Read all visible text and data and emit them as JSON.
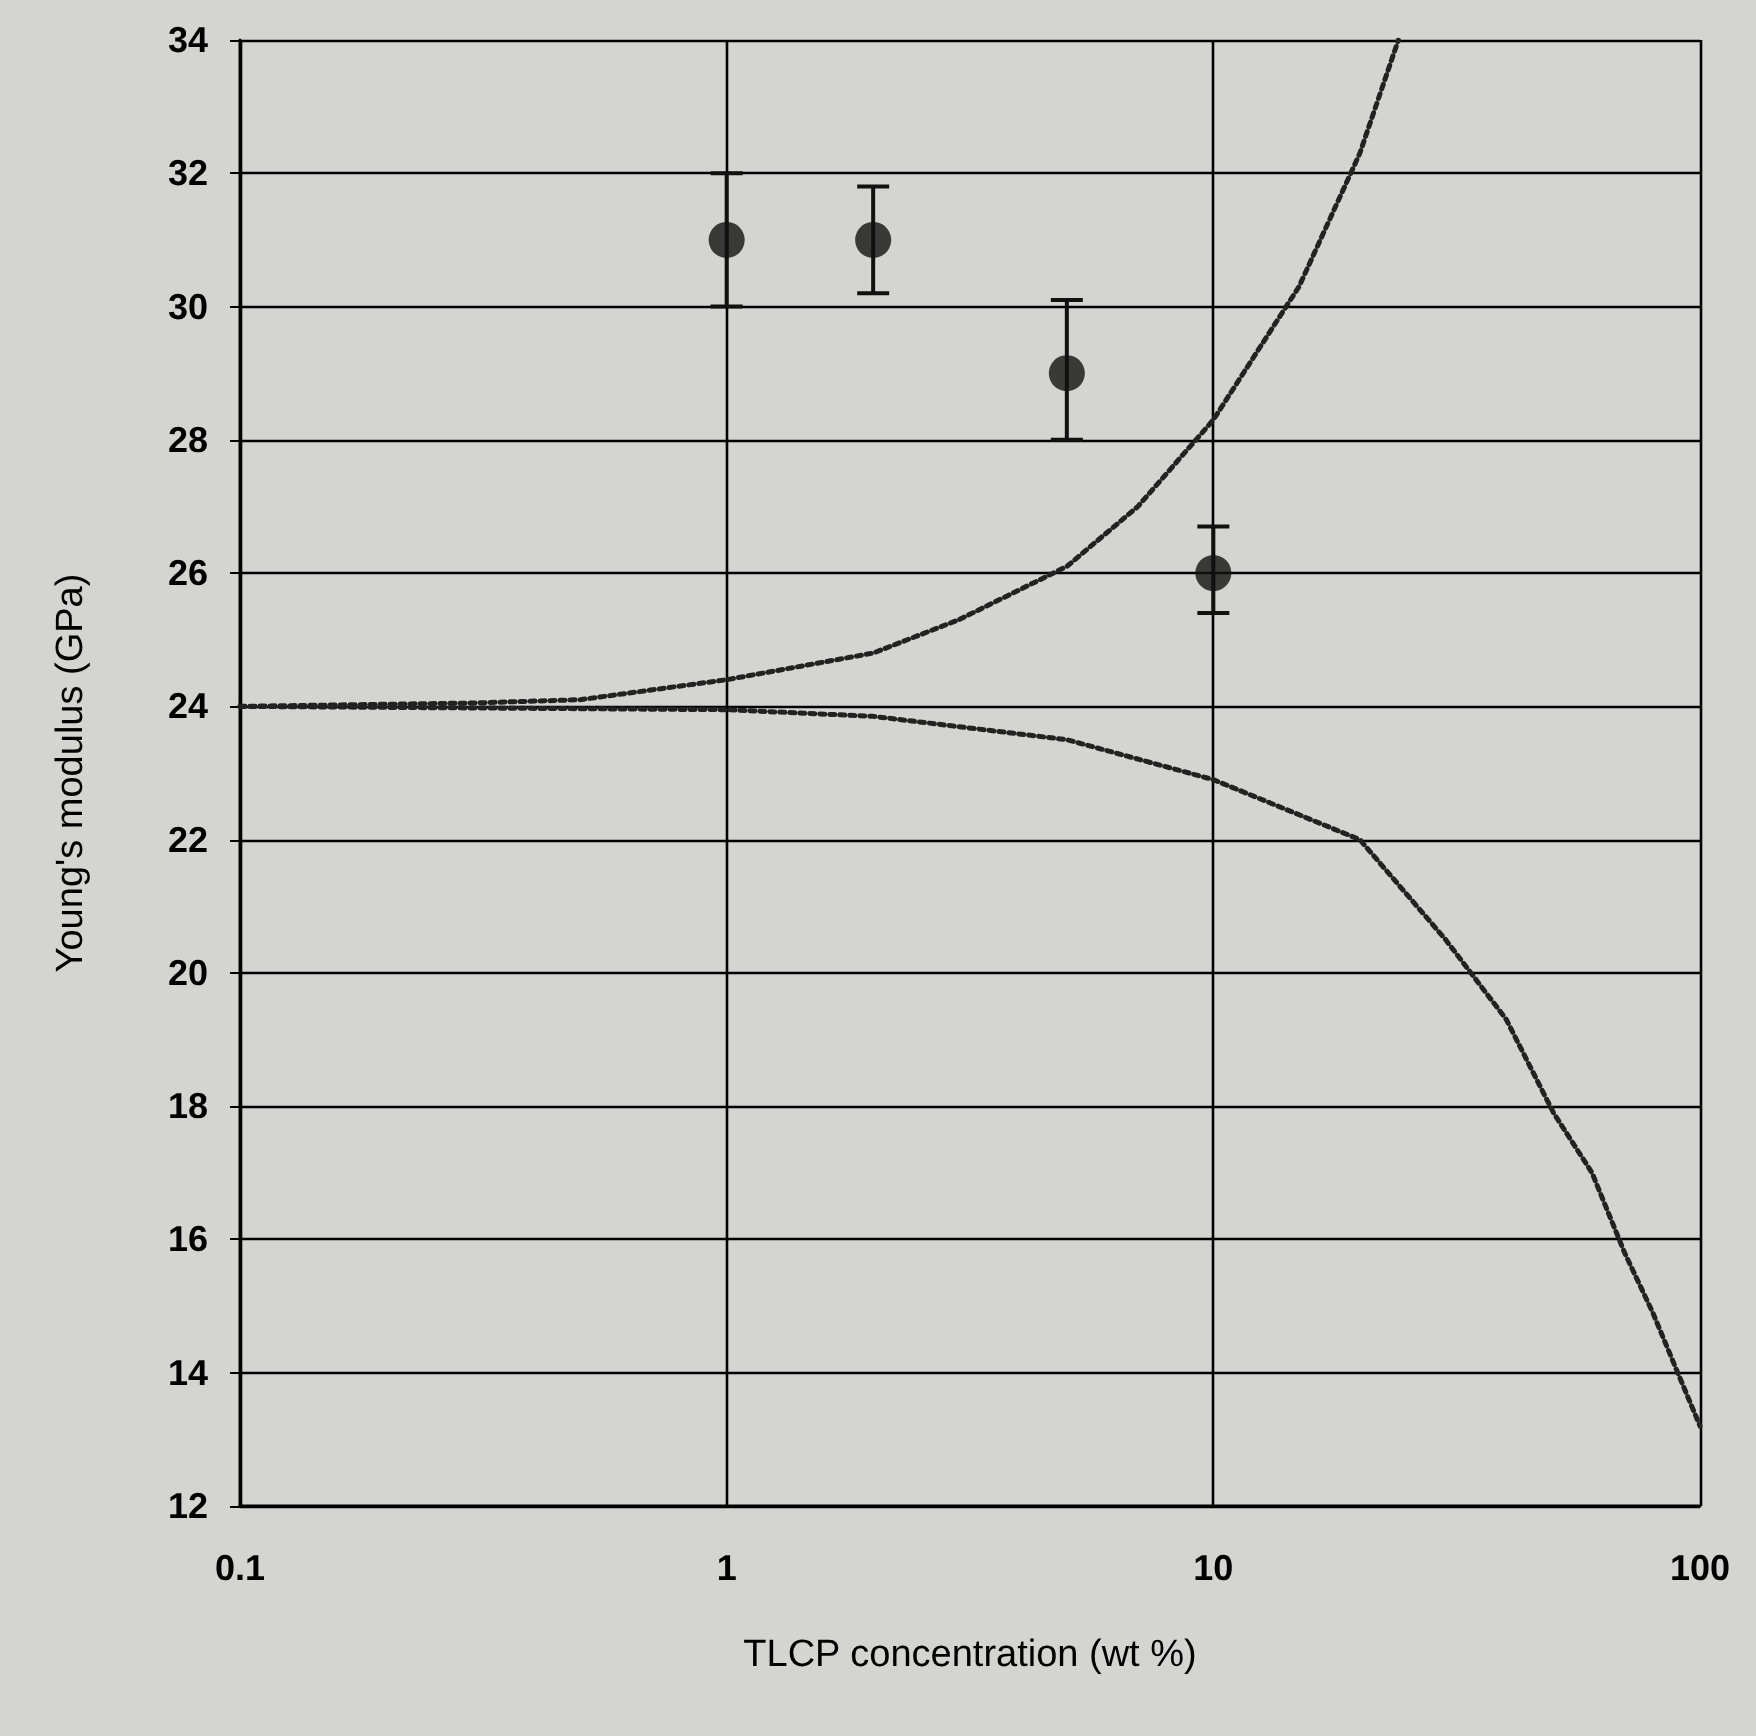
{
  "chart_data": {
    "type": "scatter",
    "xlabel": "TLCP concentration (wt %)",
    "ylabel": "Young's modulus (GPa)",
    "log": "x",
    "xlim": [
      0.1,
      100
    ],
    "xticks": [
      0.1,
      1,
      10,
      100
    ],
    "ylim": [
      12,
      34
    ],
    "yticks": [
      12,
      14,
      16,
      18,
      20,
      22,
      24,
      26,
      28,
      30,
      32,
      34
    ],
    "grid": true,
    "series": [
      {
        "color": "#111111",
        "marker": "circle",
        "x": [
          1,
          2,
          5,
          10
        ],
        "values": [
          31,
          31,
          29,
          26
        ],
        "errors": [
          [
            30.0,
            32.0
          ],
          [
            30.2,
            31.8
          ],
          [
            28.0,
            30.1
          ],
          [
            25.4,
            26.7
          ]
        ]
      },
      {
        "type": "line",
        "color": "#222222",
        "marker": "none",
        "line_style": "dotted",
        "x": [
          0.1,
          0.3,
          0.5,
          1,
          2,
          3,
          5,
          7,
          10,
          15,
          20,
          24
        ],
        "values": [
          24,
          24.05,
          24.1,
          24.4,
          24.8,
          25.3,
          26.1,
          27,
          28.3,
          30.3,
          32.3,
          34
        ]
      },
      {
        "type": "line",
        "color": "#222222",
        "marker": "none",
        "line_style": "dotted",
        "x": [
          0.1,
          1,
          2,
          5,
          10,
          20,
          30,
          40,
          50,
          60,
          70,
          80,
          90,
          100
        ],
        "values": [
          24,
          23.95,
          23.85,
          23.5,
          22.9,
          22.0,
          20.5,
          19.3,
          17.9,
          17.0,
          15.8,
          14.9,
          14.0,
          13.2
        ]
      }
    ]
  }
}
